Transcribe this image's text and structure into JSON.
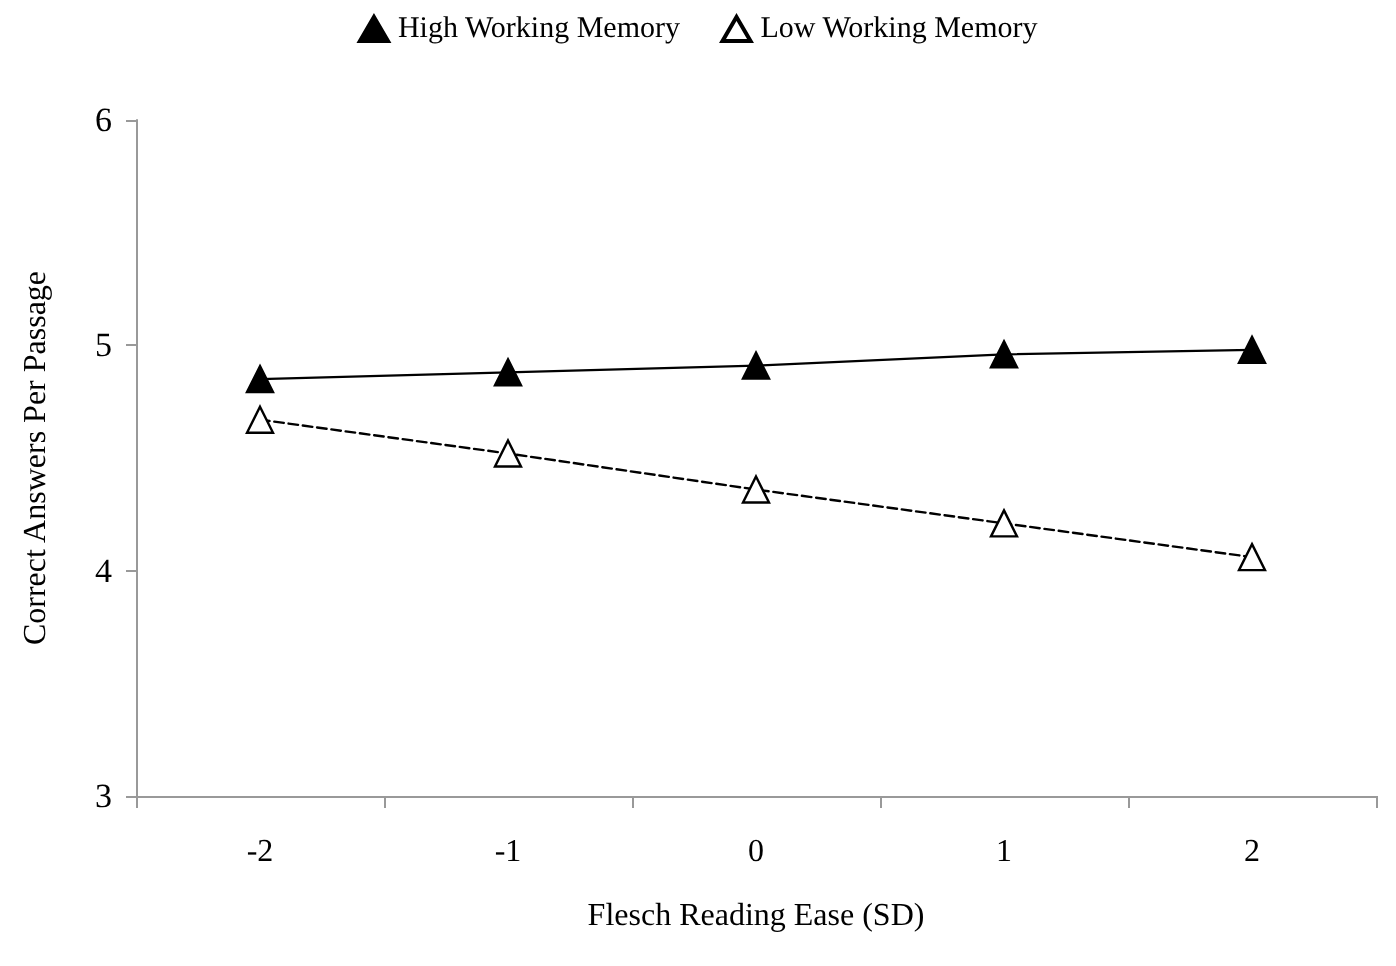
{
  "chart_data": {
    "type": "line",
    "xlabel": "Flesch Reading Ease (SD)",
    "ylabel": "Correct Answers Per Passage",
    "categories": [
      "-2",
      "-1",
      "0",
      "1",
      "2"
    ],
    "series": [
      {
        "name": "High Working Memory",
        "color": "#000000",
        "values": [
          4.85,
          4.88,
          4.91,
          4.96,
          4.98
        ],
        "marker": "triangle",
        "line_style": "solid"
      },
      {
        "name": "Low Working Memory",
        "color": "#000000",
        "values": [
          4.67,
          4.52,
          4.36,
          4.21,
          4.06
        ],
        "marker": "triangle",
        "line_style": "dashed"
      }
    ],
    "ylim": [
      3,
      6
    ],
    "yticks": [
      3,
      4,
      5,
      6
    ],
    "grid": false,
    "legend": "top"
  }
}
